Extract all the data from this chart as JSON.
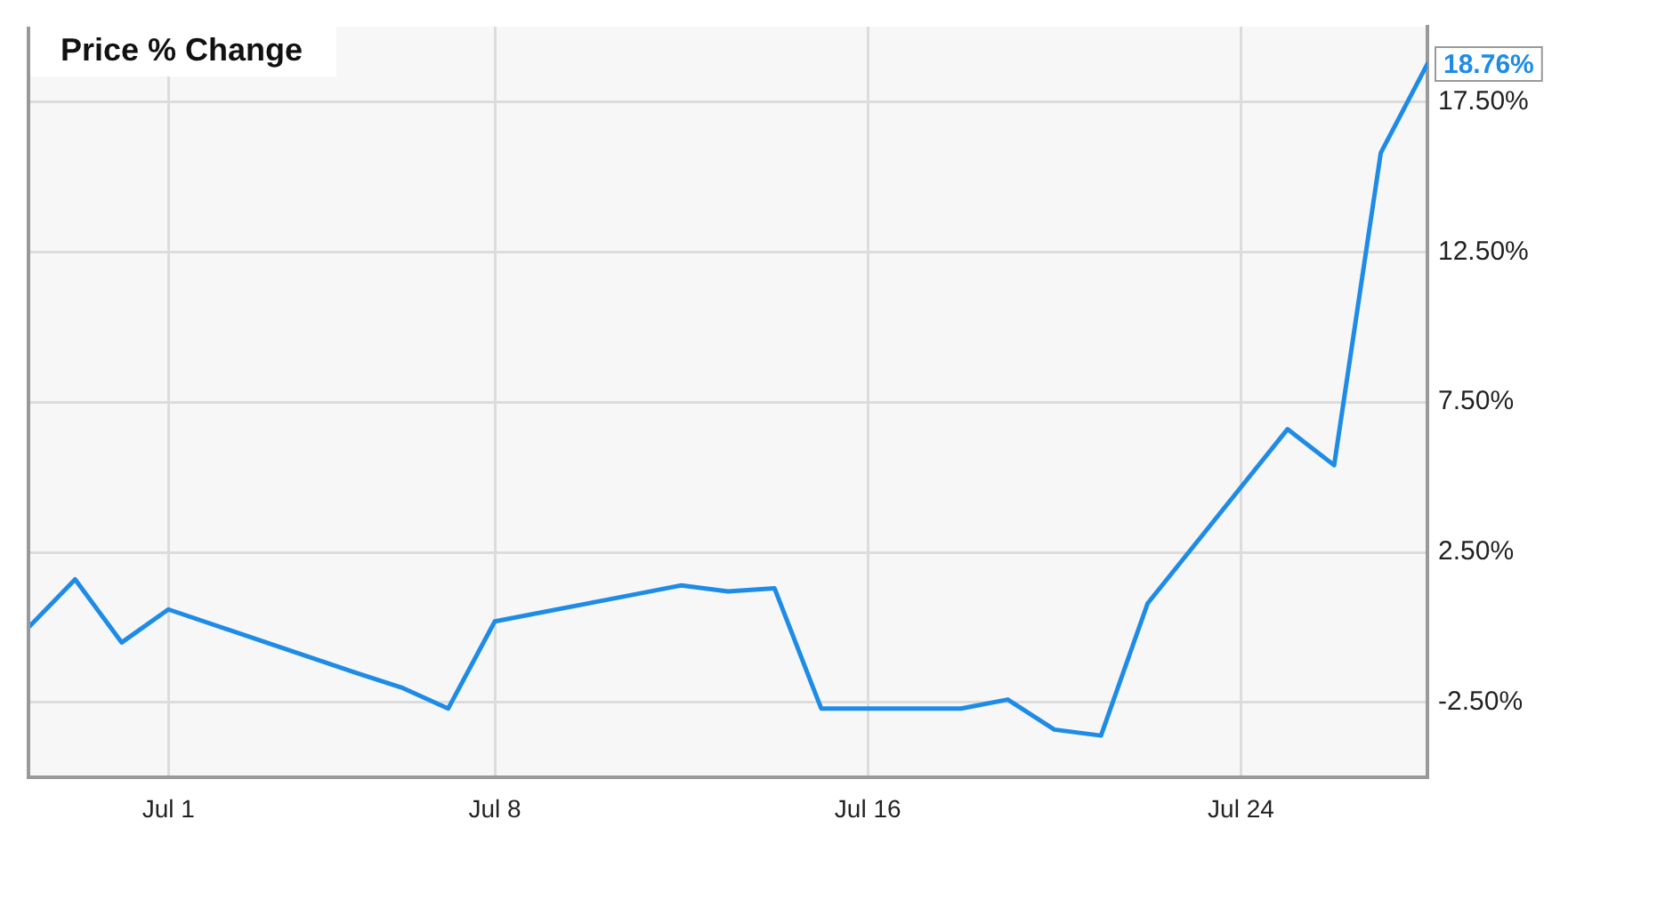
{
  "chart_data": {
    "type": "line",
    "title": "Price % Change",
    "x": [
      "--06-28",
      "--06-29",
      "--06-30",
      "--07-01",
      "--07-05",
      "--07-06",
      "--07-07",
      "--07-08",
      "--07-11",
      "--07-12",
      "--07-13",
      "--07-14",
      "--07-15",
      "--07-18",
      "--07-19",
      "--07-20",
      "--07-21",
      "--07-22",
      "--07-25",
      "--07-26",
      "--07-27",
      "--07-28"
    ],
    "series": [
      {
        "color": "#1e8ce6",
        "values": [
          0.0,
          1.6,
          -0.5,
          0.6,
          -1.5,
          -2.0,
          -2.7,
          0.2,
          1.1,
          1.4,
          1.2,
          1.3,
          -2.7,
          -2.7,
          -2.4,
          -3.4,
          -3.6,
          0.8,
          6.6,
          5.4,
          15.8,
          18.76
        ],
        "value_labels": [
          null,
          null,
          null,
          null,
          null,
          null,
          null,
          null,
          null,
          null,
          null,
          null,
          null,
          null,
          null,
          null,
          null,
          null,
          null,
          null,
          null,
          "18.76%"
        ]
      }
    ],
    "xlim": [
      "--06-28",
      "--07-28"
    ],
    "xticks": [
      {
        "value": "--07-01",
        "label": "Jul 1"
      },
      {
        "value": "--07-08",
        "label": "Jul 8"
      },
      {
        "value": "--07-16",
        "label": "Jul 16"
      },
      {
        "value": "--07-24",
        "label": "Jul 24"
      }
    ],
    "ylim": [
      -5,
      20
    ],
    "yticks": [
      {
        "value": -2.5,
        "label": "-2.50%"
      },
      {
        "value": 2.5,
        "label": "2.50%"
      },
      {
        "value": 7.5,
        "label": "7.50%"
      },
      {
        "value": 12.5,
        "label": "12.50%"
      },
      {
        "value": 17.5,
        "label": "17.50%"
      }
    ],
    "grid": true
  }
}
